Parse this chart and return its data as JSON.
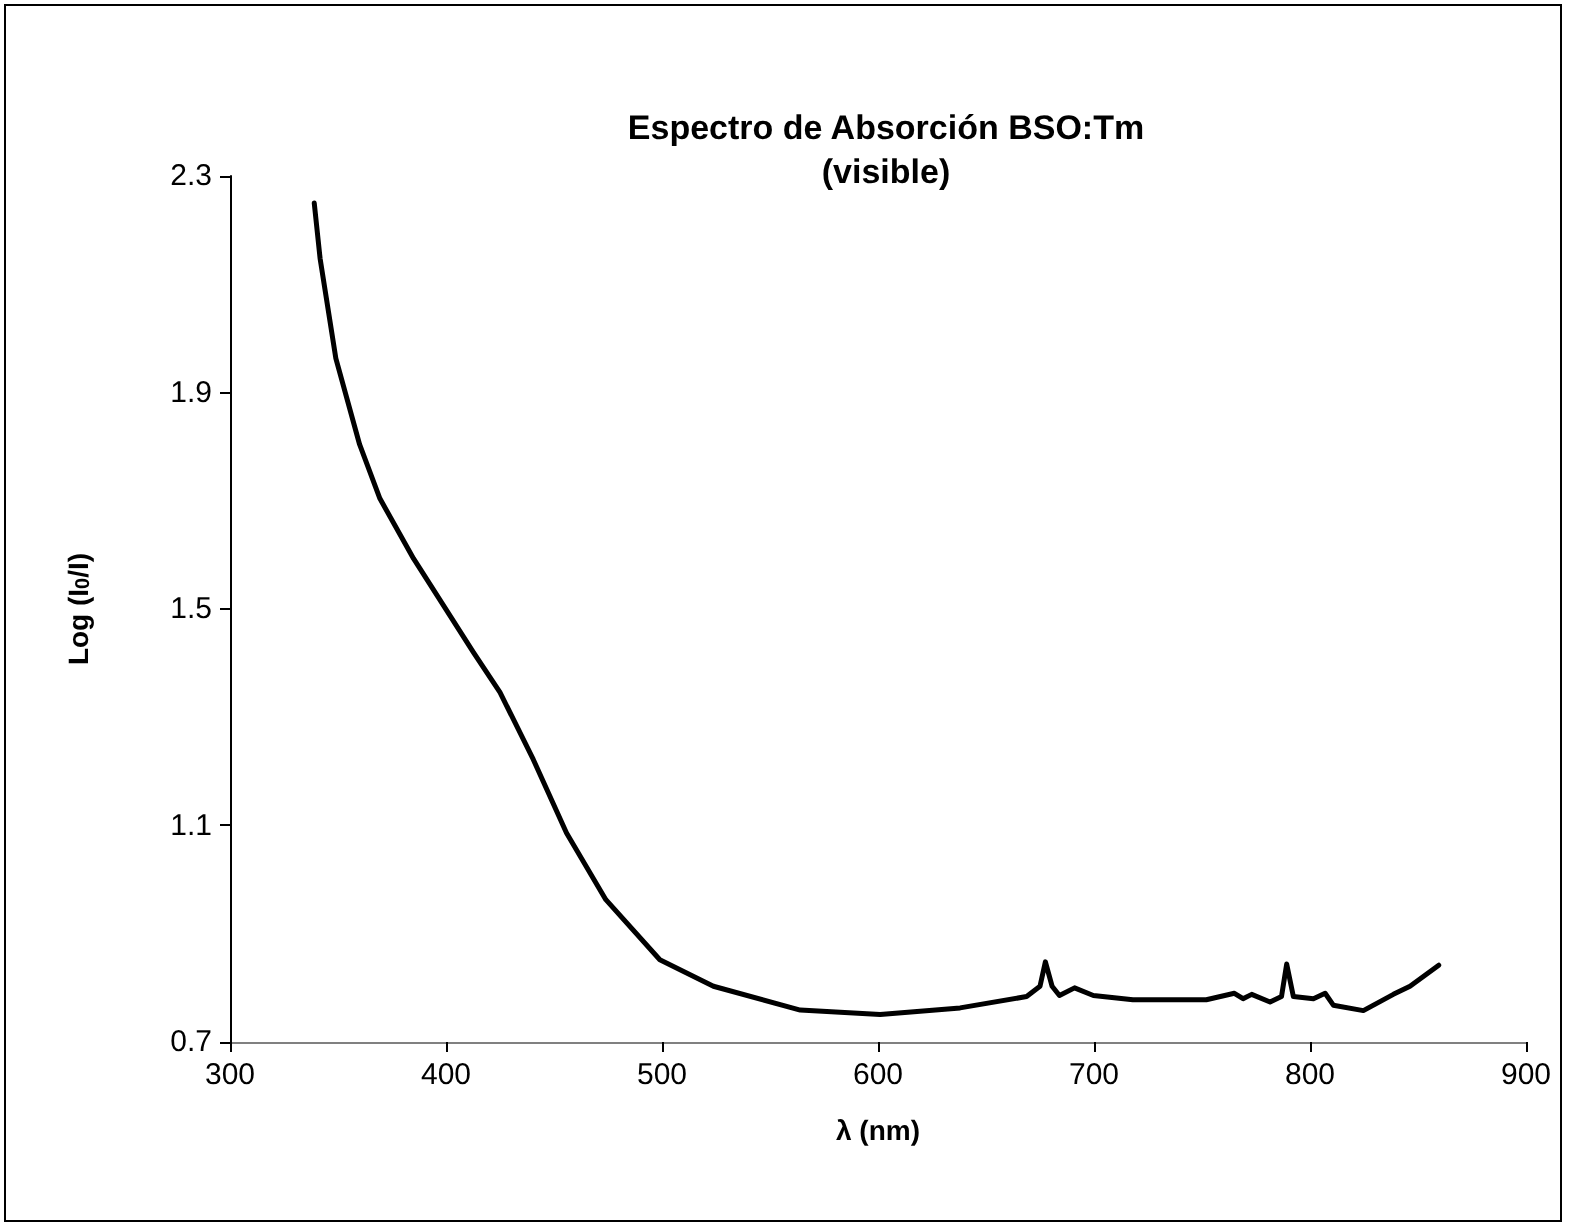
{
  "chart_data": {
    "type": "line",
    "title": "Espectro de Absorción BSO:Tm\n(visible)",
    "xlabel": "λ (nm)",
    "ylabel": "Log (I$_{0}$/I)",
    "x": [
      339,
      341.7,
      349,
      360,
      369.4,
      385,
      412.7,
      425,
      440.4,
      455.8,
      474,
      499,
      523.8,
      564,
      601,
      638,
      668.8,
      675,
      677.5,
      680.6,
      684,
      691,
      699.7,
      718,
      752,
      765,
      769,
      773,
      781.5,
      786.8,
      789.2,
      792.3,
      801.6,
      807,
      810.8,
      824.7,
      838.6,
      846.3,
      859.6
    ],
    "series": [
      {
        "color": "#000000",
        "values": [
          2.25,
          2.148,
          1.963,
          1.804,
          1.704,
          1.593,
          1.42,
          1.346,
          1.222,
          1.086,
          0.963,
          0.852,
          0.803,
          0.759,
          0.751,
          0.763,
          0.784,
          0.803,
          0.848,
          0.803,
          0.786,
          0.8,
          0.786,
          0.778,
          0.778,
          0.79,
          0.78,
          0.788,
          0.774,
          0.784,
          0.844,
          0.784,
          0.78,
          0.79,
          0.768,
          0.758,
          0.788,
          0.803,
          0.842
        ]
      }
    ],
    "xlim": [
      300,
      900
    ],
    "xticks": [
      300,
      400,
      500,
      600,
      700,
      800,
      900
    ],
    "ylim": [
      0.7,
      2.3
    ],
    "yticks": [
      0.7,
      1.1,
      1.5,
      1.9,
      2.3
    ],
    "grid": false,
    "marker": "none",
    "line_style": "solid"
  }
}
